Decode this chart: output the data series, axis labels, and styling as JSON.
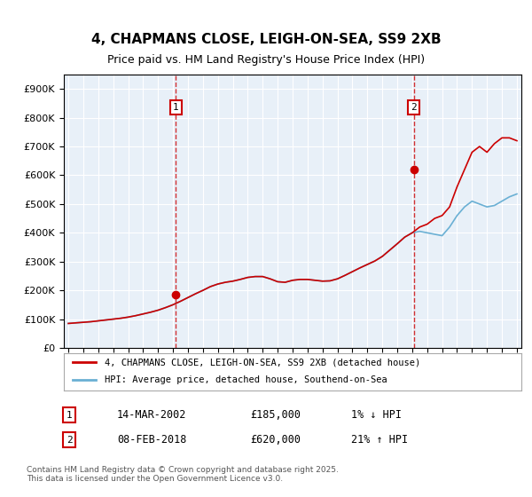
{
  "title": "4, CHAPMANS CLOSE, LEIGH-ON-SEA, SS9 2XB",
  "subtitle": "Price paid vs. HM Land Registry's House Price Index (HPI)",
  "legend_line1": "4, CHAPMANS CLOSE, LEIGH-ON-SEA, SS9 2XB (detached house)",
  "legend_line2": "HPI: Average price, detached house, Southend-on-Sea",
  "annotation1_label": "1",
  "annotation1_date": "14-MAR-2002",
  "annotation1_price": "£185,000",
  "annotation1_hpi": "1% ↓ HPI",
  "annotation2_label": "2",
  "annotation2_date": "08-FEB-2018",
  "annotation2_price": "£620,000",
  "annotation2_hpi": "21% ↑ HPI",
  "footer": "Contains HM Land Registry data © Crown copyright and database right 2025.\nThis data is licensed under the Open Government Licence v3.0.",
  "hpi_color": "#6ab0d4",
  "price_color": "#cc0000",
  "vline_color": "#cc0000",
  "background_color": "#e8f0f8",
  "ylim": [
    0,
    950000
  ],
  "yticks": [
    0,
    100000,
    200000,
    300000,
    400000,
    500000,
    600000,
    700000,
    800000,
    900000
  ],
  "year_start": 1995,
  "year_end": 2025,
  "sale1_year": 2002.2,
  "sale1_price": 185000,
  "sale2_year": 2018.1,
  "sale2_price": 620000,
  "hpi_years": [
    1995,
    1995.5,
    1996,
    1996.5,
    1997,
    1997.5,
    1998,
    1998.5,
    1999,
    1999.5,
    2000,
    2000.5,
    2001,
    2001.5,
    2002,
    2002.5,
    2003,
    2003.5,
    2004,
    2004.5,
    2005,
    2005.5,
    2006,
    2006.5,
    2007,
    2007.5,
    2008,
    2008.5,
    2009,
    2009.5,
    2010,
    2010.5,
    2011,
    2011.5,
    2012,
    2012.5,
    2013,
    2013.5,
    2014,
    2014.5,
    2015,
    2015.5,
    2016,
    2016.5,
    2017,
    2017.5,
    2018,
    2018.5,
    2019,
    2019.5,
    2020,
    2020.5,
    2021,
    2021.5,
    2022,
    2022.5,
    2023,
    2023.5,
    2024,
    2024.5,
    2025
  ],
  "hpi_values": [
    85000,
    87000,
    89000,
    91000,
    94000,
    97000,
    100000,
    103000,
    107000,
    112000,
    118000,
    124000,
    131000,
    140000,
    150000,
    162000,
    175000,
    188000,
    200000,
    213000,
    222000,
    228000,
    232000,
    238000,
    245000,
    248000,
    248000,
    240000,
    230000,
    228000,
    235000,
    238000,
    238000,
    235000,
    232000,
    233000,
    240000,
    252000,
    265000,
    278000,
    290000,
    302000,
    318000,
    340000,
    362000,
    385000,
    400000,
    405000,
    400000,
    395000,
    390000,
    420000,
    460000,
    490000,
    510000,
    500000,
    490000,
    495000,
    510000,
    525000,
    535000
  ],
  "price_years": [
    1995,
    1995.5,
    1996,
    1996.5,
    1997,
    1997.5,
    1998,
    1998.5,
    1999,
    1999.5,
    2000,
    2000.5,
    2001,
    2001.5,
    2002,
    2002.5,
    2003,
    2003.5,
    2004,
    2004.5,
    2005,
    2005.5,
    2006,
    2006.5,
    2007,
    2007.5,
    2008,
    2008.5,
    2009,
    2009.5,
    2010,
    2010.5,
    2011,
    2011.5,
    2012,
    2012.5,
    2013,
    2013.5,
    2014,
    2014.5,
    2015,
    2015.5,
    2016,
    2016.5,
    2017,
    2017.5,
    2018,
    2018.5,
    2019,
    2019.5,
    2020,
    2020.5,
    2021,
    2021.5,
    2022,
    2022.5,
    2023,
    2023.5,
    2024,
    2024.5,
    2025
  ],
  "price_values": [
    85000,
    87000,
    89000,
    91000,
    94000,
    97000,
    100000,
    103000,
    107000,
    112000,
    118000,
    124000,
    131000,
    140000,
    150000,
    162000,
    175000,
    188000,
    200000,
    213000,
    222000,
    228000,
    232000,
    238000,
    245000,
    248000,
    248000,
    240000,
    230000,
    228000,
    235000,
    238000,
    238000,
    235000,
    232000,
    233000,
    240000,
    252000,
    265000,
    278000,
    290000,
    302000,
    318000,
    340000,
    362000,
    385000,
    400000,
    420000,
    430000,
    450000,
    460000,
    490000,
    560000,
    620000,
    680000,
    700000,
    680000,
    710000,
    730000,
    730000,
    720000
  ]
}
